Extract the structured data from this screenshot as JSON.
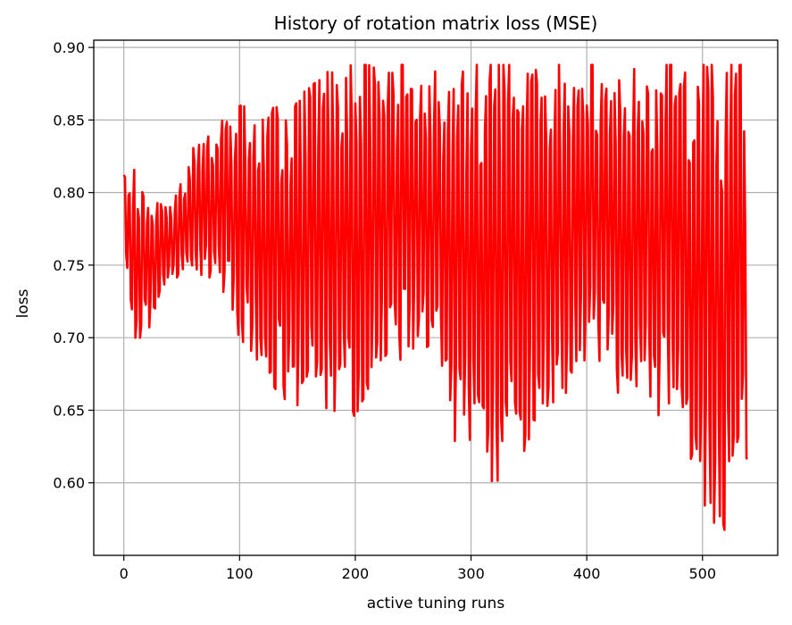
{
  "chart_data": {
    "type": "line",
    "title": "History of rotation matrix loss (MSE)",
    "xlabel": "active tuning runs",
    "ylabel": "loss",
    "xlim": [
      -26,
      565
    ],
    "ylim": [
      0.55,
      0.905
    ],
    "xticks": [
      0,
      100,
      200,
      300,
      400,
      500
    ],
    "yticks": [
      0.6,
      0.65,
      0.7,
      0.75,
      0.8,
      0.85,
      0.9
    ],
    "xtick_labels": [
      "0",
      "100",
      "200",
      "300",
      "400",
      "500"
    ],
    "ytick_labels": [
      "0.60",
      "0.65",
      "0.70",
      "0.75",
      "0.80",
      "0.85",
      "0.90"
    ],
    "grid": true,
    "legend": "none",
    "n_points": 540,
    "series": [
      {
        "color": "#ff0000",
        "envelope_x": [
          0,
          10,
          20,
          40,
          60,
          80,
          100,
          120,
          140,
          160,
          180,
          200,
          220,
          240,
          260,
          280,
          300,
          320,
          340,
          360,
          380,
          400,
          420,
          440,
          460,
          480,
          500,
          520,
          535,
          539
        ],
        "upper": [
          0.818,
          0.818,
          0.795,
          0.79,
          0.832,
          0.846,
          0.86,
          0.857,
          0.86,
          0.872,
          0.886,
          0.888,
          0.888,
          0.888,
          0.888,
          0.888,
          0.888,
          0.888,
          0.888,
          0.888,
          0.888,
          0.888,
          0.888,
          0.888,
          0.888,
          0.888,
          0.888,
          0.888,
          0.888,
          0.778
        ],
        "lower": [
          0.765,
          0.7,
          0.7,
          0.74,
          0.745,
          0.74,
          0.7,
          0.68,
          0.652,
          0.655,
          0.65,
          0.646,
          0.68,
          0.685,
          0.7,
          0.636,
          0.612,
          0.6,
          0.61,
          0.65,
          0.66,
          0.68,
          0.668,
          0.65,
          0.643,
          0.65,
          0.578,
          0.567,
          0.6,
          0.578
        ]
      }
    ]
  }
}
